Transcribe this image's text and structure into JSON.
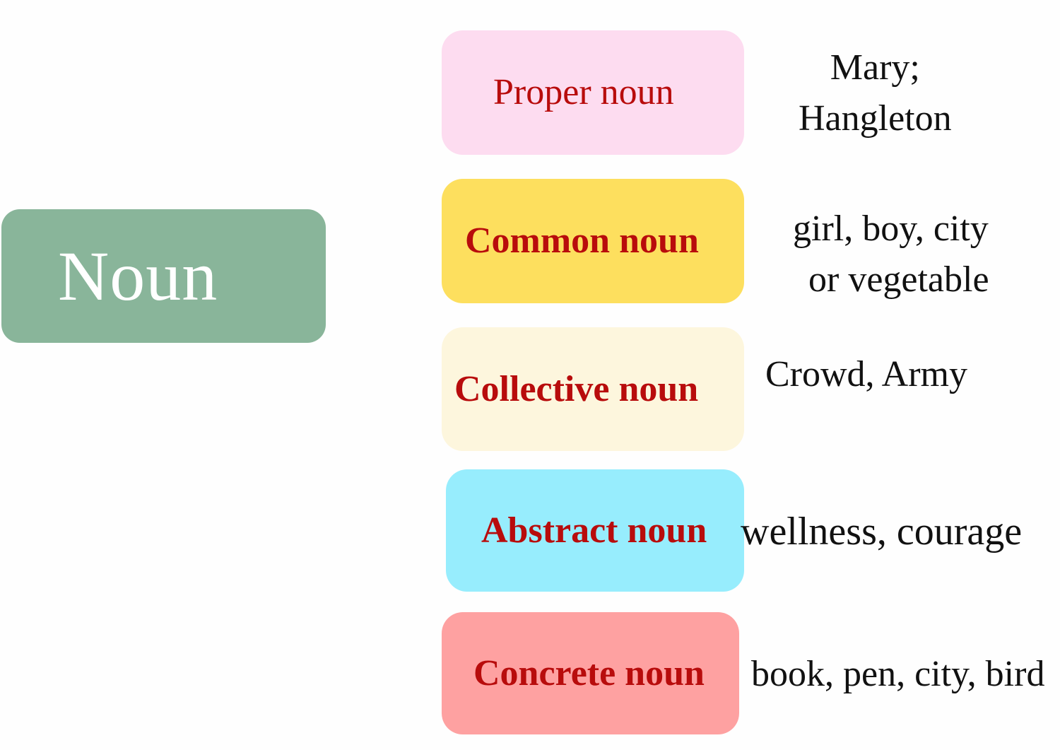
{
  "root": {
    "label": "Noun",
    "color": "#89b59a"
  },
  "categories": [
    {
      "label": "Proper noun",
      "color": "#fddcf0",
      "examples": [
        "Mary;",
        "Hangleton"
      ]
    },
    {
      "label": "Common noun",
      "color": "#fddf5e",
      "examples": [
        "girl, boy, city",
        "or vegetable"
      ]
    },
    {
      "label": "Collective noun",
      "color": "#fdf6dd",
      "examples": [
        "Crowd, Army"
      ]
    },
    {
      "label": "Abstract noun",
      "color": "#97edfd",
      "examples": [
        "wellness, courage"
      ]
    },
    {
      "label": "Concrete noun",
      "color": "#fea1a1",
      "examples": [
        "book, pen, city, bird"
      ]
    }
  ],
  "label_color": "#b80c0c"
}
